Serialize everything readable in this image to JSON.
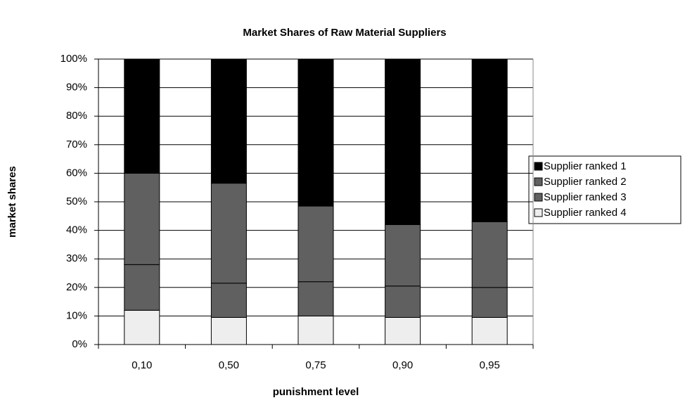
{
  "chart_data": {
    "type": "stacked_bar",
    "title": "Market Shares of Raw Material Suppliers",
    "x_label": "punishment level",
    "y_label": "market shares",
    "categories": [
      "0,10",
      "0,50",
      "0,75",
      "0,90",
      "0,95"
    ],
    "series": [
      {
        "name": "Supplier ranked 1",
        "color": "#000000",
        "values": [
          40,
          43.5,
          51.5,
          58,
          57
        ]
      },
      {
        "name": "Supplier ranked 2",
        "color": "#606060",
        "values": [
          32,
          35,
          26.5,
          21.5,
          23
        ]
      },
      {
        "name": "Supplier ranked 3",
        "color": "#606060",
        "values": [
          16,
          12,
          12,
          11,
          10.5
        ]
      },
      {
        "name": "Supplier ranked 4",
        "color": "#eeeeee",
        "values": [
          12,
          9.5,
          10,
          9.5,
          9.5
        ]
      }
    ],
    "ylim": [
      0,
      100
    ],
    "yticks": [
      {
        "value": 0,
        "label": "0%"
      },
      {
        "value": 10,
        "label": "10%"
      },
      {
        "value": 20,
        "label": "20%"
      },
      {
        "value": 30,
        "label": "30%"
      },
      {
        "value": 40,
        "label": "40%"
      },
      {
        "value": 50,
        "label": "50%"
      },
      {
        "value": 60,
        "label": "60%"
      },
      {
        "value": 70,
        "label": "70%"
      },
      {
        "value": 80,
        "label": "80%"
      },
      {
        "value": 90,
        "label": "90%"
      },
      {
        "value": 100,
        "label": "100%"
      }
    ],
    "grid": true,
    "legend": "right"
  }
}
